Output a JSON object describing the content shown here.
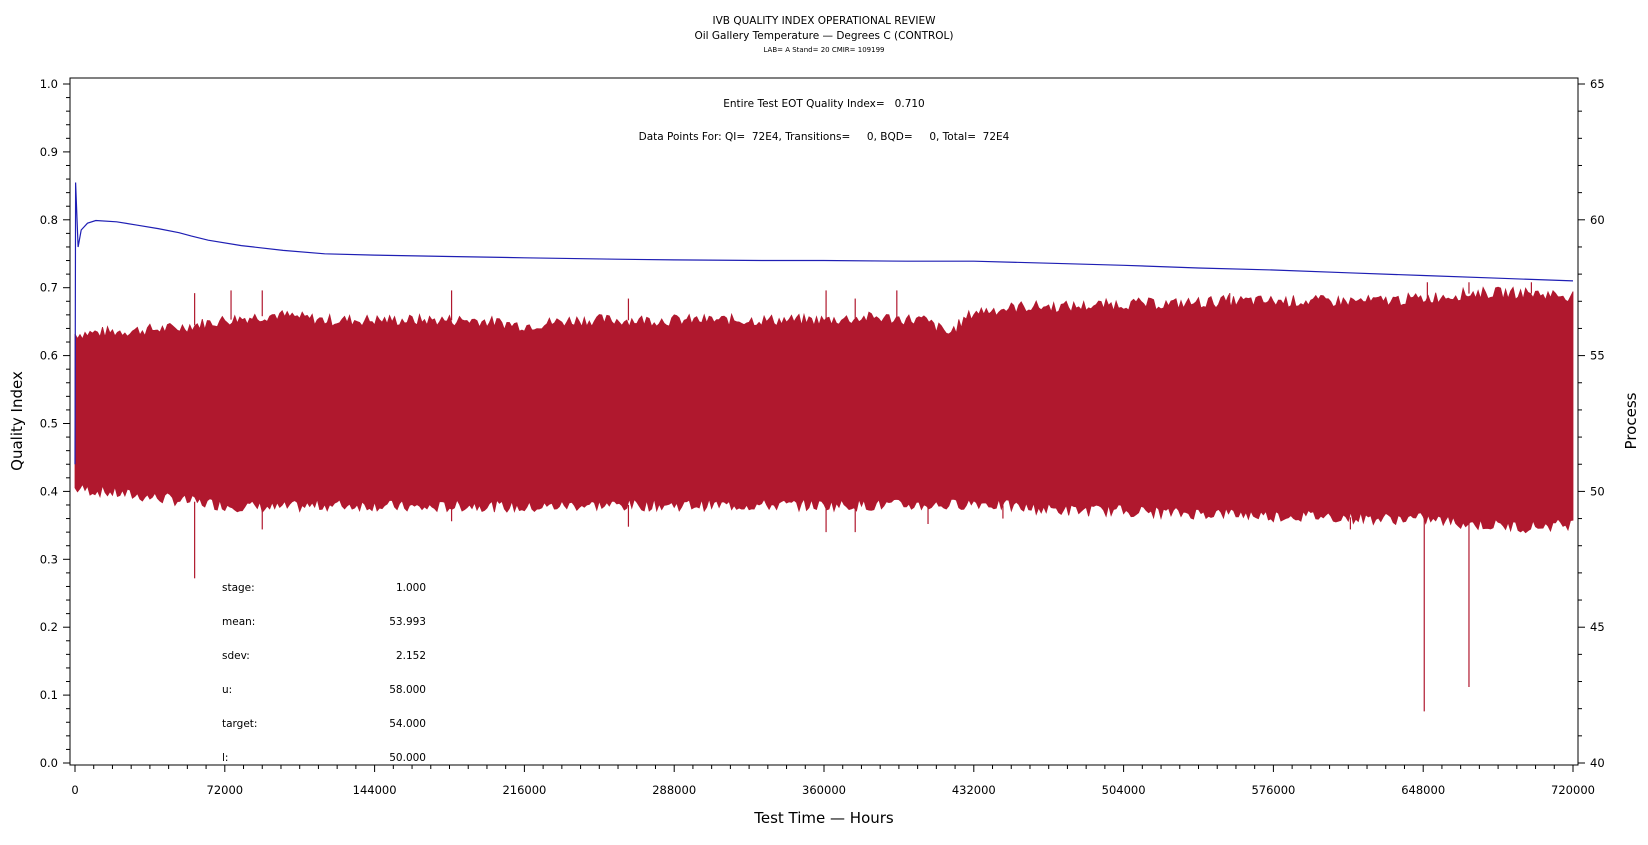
{
  "chart_data": {
    "type": "line",
    "title": "IVB QUALITY INDEX OPERATIONAL REVIEW",
    "subtitle": "Oil Gallery Temperature — Degrees C (CONTROL)",
    "subtitle2": "LAB= A Stand= 20 CMIR= 109199",
    "xlabel": "Test Time — Hours",
    "ylabel": "Quality Index",
    "y2label": "Process",
    "xlim": [
      0,
      720000
    ],
    "ylim": [
      0.0,
      1.0
    ],
    "y2lim": [
      40,
      65
    ],
    "xticks": [
      "0",
      "72000",
      "144000",
      "216000",
      "288000",
      "360000",
      "432000",
      "504000",
      "576000",
      "648000",
      "720000"
    ],
    "yticks": [
      "0.0",
      "0.1",
      "0.2",
      "0.3",
      "0.4",
      "0.5",
      "0.6",
      "0.7",
      "0.8",
      "0.9",
      "1.0"
    ],
    "y2ticks": [
      "40",
      "45",
      "50",
      "55",
      "60",
      "65"
    ],
    "grid": false,
    "annotations": {
      "eot_quality": "Entire Test EOT Quality Index=   0.710",
      "data_points": "Data Points For: QI=  72E4, Transitions=     0, BQD=     0, Total=  72E4"
    },
    "stats": [
      {
        "label": "stage:",
        "value": "1.000"
      },
      {
        "label": "mean:",
        "value": "53.993"
      },
      {
        "label": "sdev:",
        "value": "2.152"
      },
      {
        "label": "u:",
        "value": "58.000"
      },
      {
        "label": "target:",
        "value": "54.000"
      },
      {
        "label": "l:",
        "value": "50.000"
      }
    ],
    "series": [
      {
        "axis": "left",
        "color": "#1f1fb4",
        "x": [
          0,
          300,
          1500,
          3000,
          6000,
          10000,
          20000,
          30000,
          40000,
          50000,
          56000,
          64000,
          80000,
          100000,
          120000,
          144000,
          180000,
          216000,
          260000,
          288000,
          330000,
          360000,
          400000,
          432000,
          470000,
          504000,
          540000,
          576000,
          612000,
          648000,
          684000,
          720000
        ],
        "y": [
          0.44,
          0.855,
          0.76,
          0.785,
          0.795,
          0.799,
          0.797,
          0.792,
          0.787,
          0.781,
          0.776,
          0.77,
          0.762,
          0.755,
          0.75,
          0.748,
          0.746,
          0.744,
          0.742,
          0.741,
          0.74,
          0.74,
          0.739,
          0.739,
          0.736,
          0.733,
          0.729,
          0.726,
          0.722,
          0.718,
          0.714,
          0.71
        ]
      },
      {
        "axis": "right",
        "color": "#b0182e",
        "x": [
          0,
          2000,
          24000,
          48000,
          72000,
          96000,
          120000,
          144000,
          168000,
          192000,
          216000,
          240000,
          264000,
          288000,
          312000,
          336000,
          360000,
          384000,
          408000,
          420000,
          432000,
          456000,
          480000,
          504000,
          528000,
          552000,
          576000,
          600000,
          624000,
          648000,
          672000,
          696000,
          720000
        ],
        "upper": [
          55.8,
          55.8,
          55.9,
          56.0,
          56.3,
          56.5,
          56.3,
          56.3,
          56.3,
          56.3,
          56.1,
          56.3,
          56.3,
          56.3,
          56.3,
          56.3,
          56.3,
          56.4,
          56.3,
          55.8,
          56.6,
          56.8,
          56.8,
          56.9,
          56.9,
          57.0,
          57.0,
          57.0,
          57.0,
          57.1,
          57.3,
          57.3,
          57.2
        ],
        "lower": [
          50.1,
          50.1,
          49.9,
          49.7,
          49.5,
          49.4,
          49.5,
          49.5,
          49.4,
          49.5,
          49.4,
          49.5,
          49.5,
          49.5,
          49.5,
          49.5,
          49.5,
          49.5,
          49.5,
          49.5,
          49.6,
          49.4,
          49.3,
          49.3,
          49.2,
          49.2,
          49.1,
          49.1,
          49.0,
          49.0,
          48.8,
          48.7,
          48.8
        ],
        "spikes_down": [
          [
            57500,
            46.8
          ],
          [
            90000,
            48.6
          ],
          [
            181000,
            48.9
          ],
          [
            266000,
            48.7
          ],
          [
            361000,
            48.5
          ],
          [
            375000,
            48.5
          ],
          [
            410000,
            48.8
          ],
          [
            446000,
            49.0
          ],
          [
            613000,
            48.6
          ],
          [
            648500,
            41.9
          ],
          [
            670000,
            42.8
          ],
          [
            705000,
            48.7
          ]
        ],
        "spikes_up": [
          [
            57500,
            57.3
          ],
          [
            75000,
            57.4
          ],
          [
            90000,
            57.4
          ],
          [
            181000,
            57.4
          ],
          [
            266000,
            57.1
          ],
          [
            361000,
            57.4
          ],
          [
            375000,
            57.1
          ],
          [
            395000,
            57.4
          ],
          [
            555000,
            57.3
          ],
          [
            650000,
            57.7
          ],
          [
            670000,
            57.7
          ],
          [
            700000,
            57.7
          ]
        ]
      }
    ]
  }
}
